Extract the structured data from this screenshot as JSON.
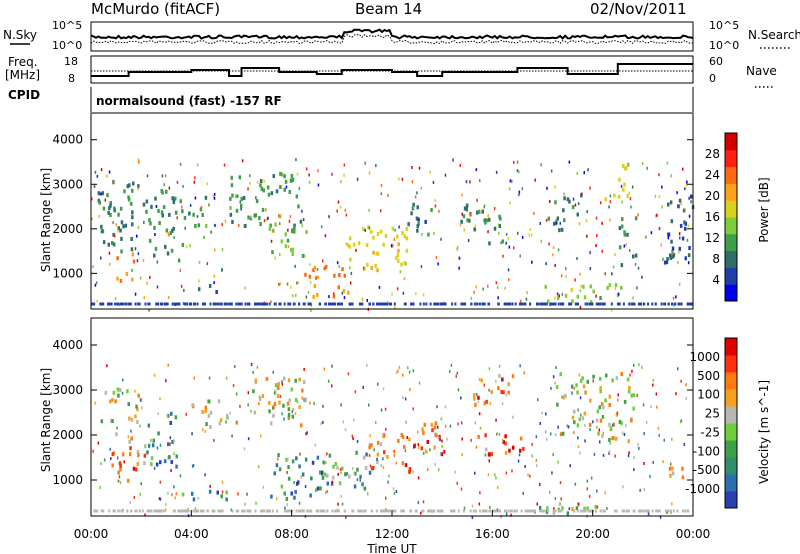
{
  "header": {
    "station": "McMurdo (fitACF)",
    "beam": "Beam 14",
    "date": "02/Nov/2011"
  },
  "noise_panel": {
    "left_label": "N.Sky",
    "right_label": "N.Search",
    "left_ticks": [
      "10^5",
      "10^0"
    ],
    "right_ticks": [
      "10^5",
      "10^0"
    ]
  },
  "freq_panel": {
    "left_label_line1": "Freq.",
    "left_label_line2": "[MHz]",
    "left_ticks": [
      "18",
      "8"
    ],
    "right_label": "Nave",
    "right_ticks": [
      "60",
      "0"
    ]
  },
  "cpid_panel": {
    "label": "CPID",
    "text": "normalsound (fast) -157 RF"
  },
  "time_axis": {
    "title": "Time UT",
    "ticks": [
      "00:00",
      "04:00",
      "08:00",
      "12:00",
      "16:00",
      "20:00",
      "00:00"
    ]
  },
  "chart_data": [
    {
      "type": "heatmap",
      "title": "Power",
      "xlabel": "Time UT",
      "ylabel": "Slant Range [km]",
      "ylim": [
        200,
        4600
      ],
      "y_ticks": [
        "1000",
        "2000",
        "3000",
        "4000"
      ],
      "colorbar_label": "Power [dB]",
      "colorbar_ticks": [
        "28",
        "24",
        "20",
        "16",
        "12",
        "8",
        "4"
      ],
      "colorbar_colors": [
        "#0000ee",
        "#1e3fa8",
        "#2f6f6a",
        "#3e9f4a",
        "#7fcc3a",
        "#d9d21a",
        "#ffa21a",
        "#ff6a10",
        "#ff2010",
        "#d40000"
      ],
      "scatter_regions": [
        {
          "t0": 0.2,
          "t1": 2.4,
          "r0": 1500,
          "r1": 3100,
          "level": 9
        },
        {
          "t0": 1.0,
          "t1": 1.8,
          "r0": 850,
          "r1": 1500,
          "level": 22
        },
        {
          "t0": 2.3,
          "t1": 3.7,
          "r0": 1300,
          "r1": 2900,
          "level": 10
        },
        {
          "t0": 3.8,
          "t1": 4.6,
          "r0": 2100,
          "r1": 2800,
          "level": 11
        },
        {
          "t0": 4.2,
          "t1": 5.4,
          "r0": 600,
          "r1": 800,
          "level": 7
        },
        {
          "t0": 5.5,
          "t1": 8.5,
          "r0": 2100,
          "r1": 3300,
          "level": 11
        },
        {
          "t0": 7.0,
          "t1": 8.6,
          "r0": 1400,
          "r1": 2100,
          "level": 13
        },
        {
          "t0": 8.5,
          "t1": 10.3,
          "r0": 500,
          "r1": 1200,
          "level": 23
        },
        {
          "t0": 10.2,
          "t1": 12.6,
          "r0": 1100,
          "r1": 2200,
          "level": 18
        },
        {
          "t0": 12.5,
          "t1": 13.6,
          "r0": 1800,
          "r1": 2600,
          "level": 8
        },
        {
          "t0": 14.7,
          "t1": 16.4,
          "r0": 1700,
          "r1": 2600,
          "level": 9
        },
        {
          "t0": 18.0,
          "t1": 21.2,
          "r0": 400,
          "r1": 800,
          "level": 14
        },
        {
          "t0": 18.2,
          "t1": 19.5,
          "r0": 2000,
          "r1": 2800,
          "level": 9
        },
        {
          "t0": 20.4,
          "t1": 21.4,
          "r0": 2700,
          "r1": 3500,
          "level": 17
        },
        {
          "t0": 21.0,
          "t1": 21.7,
          "r0": 1200,
          "r1": 2300,
          "level": 10
        },
        {
          "t0": 22.8,
          "t1": 24.0,
          "r0": 1100,
          "r1": 2800,
          "level": 7
        }
      ]
    },
    {
      "type": "heatmap",
      "title": "Velocity",
      "xlabel": "Time UT",
      "ylabel": "Slant Range [km]",
      "ylim": [
        200,
        4600
      ],
      "y_ticks": [
        "1000",
        "2000",
        "3000",
        "4000"
      ],
      "colorbar_label": "Velocity [m s^-1]",
      "colorbar_ticks": [
        "1000",
        "500",
        "100",
        "25",
        "-25",
        "-100",
        "-500",
        "-1000"
      ],
      "colorbar_colors": [
        "#2a3fb0",
        "#2e6fb0",
        "#2f8f6a",
        "#3fa04a",
        "#6fce3a",
        "#b8b8b0",
        "#f7a020",
        "#ff7a10",
        "#ff3010",
        "#e00000"
      ],
      "scatter_regions": [
        {
          "t0": 0.2,
          "t1": 2.0,
          "r0": 2300,
          "r1": 3100,
          "level": 5
        },
        {
          "t0": 0.8,
          "t1": 2.2,
          "r0": 1000,
          "r1": 2100,
          "level": 7
        },
        {
          "t0": 2.2,
          "t1": 3.4,
          "r0": 1300,
          "r1": 2600,
          "level": 2
        },
        {
          "t0": 3.5,
          "t1": 5.4,
          "r0": 500,
          "r1": 800,
          "level": 2
        },
        {
          "t0": 4.0,
          "t1": 6.0,
          "r0": 2200,
          "r1": 2800,
          "level": 5
        },
        {
          "t0": 6.4,
          "t1": 8.6,
          "r0": 2200,
          "r1": 3400,
          "level": 5
        },
        {
          "t0": 7.0,
          "t1": 9.2,
          "r0": 600,
          "r1": 1600,
          "level": 2
        },
        {
          "t0": 9.1,
          "t1": 11.2,
          "r0": 800,
          "r1": 1700,
          "level": 3
        },
        {
          "t0": 11.0,
          "t1": 12.7,
          "r0": 1200,
          "r1": 2100,
          "level": 7
        },
        {
          "t0": 12.7,
          "t1": 14.2,
          "r0": 1600,
          "r1": 2500,
          "level": 7
        },
        {
          "t0": 15.2,
          "t1": 16.8,
          "r0": 2700,
          "r1": 3400,
          "level": 7
        },
        {
          "t0": 15.4,
          "t1": 17.2,
          "r0": 1500,
          "r1": 2100,
          "level": 7
        },
        {
          "t0": 17.8,
          "t1": 21.0,
          "r0": 300,
          "r1": 600,
          "level": 4
        },
        {
          "t0": 18.5,
          "t1": 21.6,
          "r0": 1900,
          "r1": 3400,
          "level": 5
        },
        {
          "t0": 23.0,
          "t1": 24.0,
          "r0": 1100,
          "r1": 1500,
          "level": 7
        }
      ]
    }
  ]
}
